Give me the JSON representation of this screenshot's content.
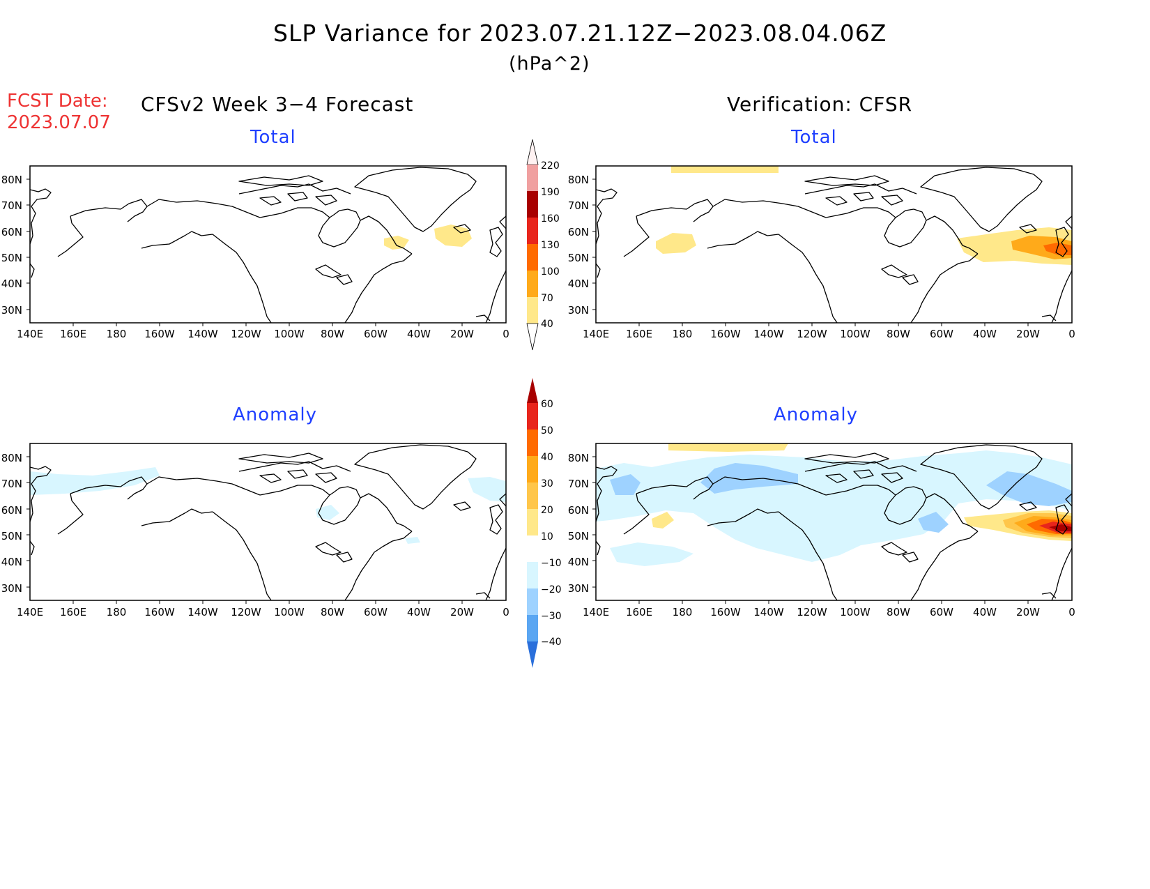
{
  "header": {
    "title": "SLP Variance for 2023.07.21.12Z−2023.08.04.06Z",
    "units": "(hPa^2)",
    "fcst_label": "FCST Date:",
    "fcst_date": "2023.07.07",
    "left_heading": "CFSv2 Week 3−4 Forecast",
    "right_heading": "Verification: CFSR"
  },
  "panels": {
    "fcst_total": {
      "title": "Total"
    },
    "fcst_anom": {
      "title": "Anomaly"
    },
    "ver_total": {
      "title": "Total"
    },
    "ver_anom": {
      "title": "Anomaly"
    }
  },
  "axes": {
    "lon_labels": [
      "140E",
      "160E",
      "180",
      "160W",
      "140W",
      "120W",
      "100W",
      "80W",
      "60W",
      "40W",
      "20W",
      "0"
    ],
    "lat_labels": [
      "80N",
      "70N",
      "60N",
      "50N",
      "40N",
      "30N"
    ]
  },
  "colorbars": {
    "total": {
      "levels": [
        "40",
        "70",
        "100",
        "130",
        "160",
        "190",
        "220"
      ],
      "colors": [
        "#ffe88a",
        "#ffaa1a",
        "#ff6a00",
        "#e8251c",
        "#a80000",
        "#f0a0a0",
        "#fbd8d8"
      ]
    },
    "anomaly": {
      "levels": [
        "60",
        "50",
        "40",
        "30",
        "20",
        "10",
        "−10",
        "−20",
        "−30",
        "−40"
      ],
      "colors": [
        "#a80000",
        "#e8251c",
        "#ff6a00",
        "#ffaa1a",
        "#ffc64a",
        "#ffe88a",
        "#ffffff",
        "#d8f6ff",
        "#9ed2ff",
        "#5aa6f2",
        "#2a6fdb"
      ]
    }
  }
}
